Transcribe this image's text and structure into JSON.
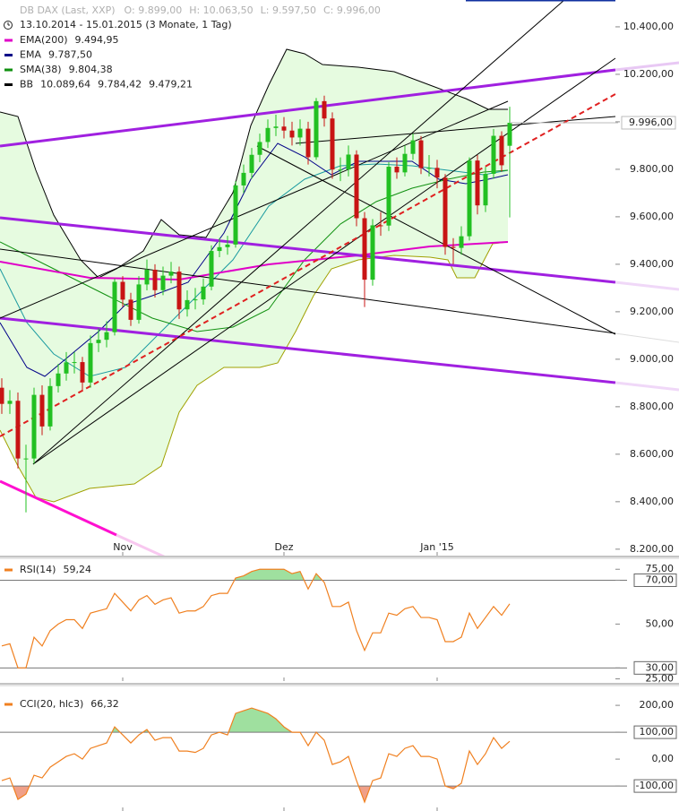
{
  "chart_data": [
    {
      "type": "candlestick",
      "title": "DB DAX (Last, XXP)",
      "ohlc_readout": [
        "O: 9.899,00",
        "H: 10.063,50",
        "L: 9.597,50",
        "C: 9.996,00"
      ],
      "subtitle": "13.10.2014 - 15.01.2015 (3 Monate, 1 Tag)",
      "legend": [
        {
          "name": "EMA(200)",
          "color": "#e000c8",
          "readings": [
            {
              "text": "9.494,95",
              "color": "#e000c8"
            }
          ]
        },
        {
          "name": "EMA",
          "color": "#000088",
          "readings": [
            {
              "text": "9.787,50",
              "color": "#000088"
            }
          ]
        },
        {
          "name": "SMA(38)",
          "color": "#109010",
          "readings": [
            {
              "text": "9.804,38",
              "color": "#109010"
            }
          ]
        },
        {
          "name": "BB",
          "color": "#000000",
          "readings": [
            {
              "text": "10.089,64",
              "color": "#000000"
            },
            {
              "text": "9.784,42",
              "color": "#1a9aa0"
            },
            {
              "text": "9.479,21",
              "color": "#a0a000"
            }
          ]
        }
      ],
      "up_color": "#22c022",
      "down_color": "#c81414",
      "open": [
        8880,
        8812,
        8825,
        8582,
        8582,
        8850,
        8717,
        8887,
        8940,
        8987,
        8988,
        8902,
        9068,
        9082,
        9114,
        9326,
        9251,
        9166,
        9315,
        9377,
        9291,
        9352,
        9369,
        9210,
        9249,
        9252,
        9306,
        9456,
        9472,
        9483,
        9732,
        9785,
        9861,
        9915,
        9974,
        9980,
        9963,
        9934,
        9971,
        9851,
        10087,
        10014,
        9799,
        9799,
        9862,
        9594,
        9335,
        9564,
        9563,
        9811,
        9787,
        9865,
        9922,
        9805,
        9806,
        9765,
        9473,
        9469,
        9518,
        9837,
        9648,
        9781,
        9941,
        9899
      ],
      "high": [
        8920,
        8870,
        8860,
        8640,
        8880,
        8890,
        8920,
        8980,
        9030,
        9030,
        9010,
        9100,
        9130,
        9160,
        9340,
        9350,
        9280,
        9350,
        9420,
        9400,
        9390,
        9410,
        9390,
        9290,
        9300,
        9340,
        9480,
        9510,
        9520,
        9750,
        9820,
        9890,
        9950,
        10010,
        10030,
        10020,
        10000,
        10010,
        10000,
        10100,
        10110,
        10040,
        9850,
        9900,
        9880,
        9620,
        9590,
        9620,
        9830,
        9850,
        9900,
        9950,
        9940,
        9860,
        9840,
        9780,
        9510,
        9560,
        9850,
        9860,
        9810,
        9970,
        9960,
        10063.5
      ],
      "low": [
        8770,
        8770,
        8540,
        8355,
        8560,
        8680,
        8700,
        8860,
        8910,
        8940,
        8870,
        8880,
        9030,
        9050,
        9100,
        9220,
        9140,
        9150,
        9290,
        9260,
        9270,
        9320,
        9170,
        9180,
        9210,
        9230,
        9290,
        9430,
        9440,
        9470,
        9700,
        9760,
        9830,
        9890,
        9940,
        9930,
        9900,
        9900,
        9820,
        9840,
        9980,
        9760,
        9750,
        9770,
        9560,
        9220,
        9310,
        9520,
        9540,
        9760,
        9770,
        9840,
        9780,
        9770,
        9720,
        9440,
        9400,
        9440,
        9500,
        9610,
        9620,
        9760,
        9790,
        9597.5
      ],
      "close": [
        8812,
        8825,
        8582,
        8582,
        8850,
        8717,
        8887,
        8940,
        8987,
        8988,
        8902,
        9068,
        9082,
        9114,
        9326,
        9251,
        9166,
        9315,
        9377,
        9291,
        9352,
        9369,
        9210,
        9249,
        9252,
        9306,
        9456,
        9472,
        9483,
        9732,
        9785,
        9861,
        9915,
        9974,
        9980,
        9963,
        9934,
        9971,
        9851,
        10087,
        10014,
        9799,
        9799,
        9862,
        9594,
        9335,
        9564,
        9563,
        9811,
        9787,
        9865,
        9922,
        9805,
        9806,
        9765,
        9473,
        9469,
        9518,
        9837,
        9648,
        9781,
        9941,
        9817,
        9996
      ],
      "last_price": {
        "value": 9996,
        "label": "9.996,00"
      },
      "ylim": [
        8173,
        10513
      ],
      "yticks": [
        {
          "value": 10400,
          "label": "10.400,00"
        },
        {
          "value": 10200,
          "label": "10.200,00"
        },
        {
          "value": 10000,
          "label": "10.000,00"
        },
        {
          "value": 9800,
          "label": "9.800,00"
        },
        {
          "value": 9600,
          "label": "9.600,00"
        },
        {
          "value": 9400,
          "label": "9.400,00"
        },
        {
          "value": 9200,
          "label": "9.200,00"
        },
        {
          "value": 9000,
          "label": "9.000,00"
        },
        {
          "value": 8800,
          "label": "8.800,00"
        },
        {
          "value": 8600,
          "label": "8.600,00"
        },
        {
          "value": 8400,
          "label": "8.400,00"
        },
        {
          "value": 8200,
          "label": "8.200,00"
        }
      ],
      "xticks": [
        {
          "value": 15,
          "label": "Nov"
        },
        {
          "value": 35,
          "label": "Dez"
        },
        {
          "value": 54,
          "label": "Jan '15"
        }
      ]
    },
    {
      "type": "line",
      "name": "RSI(14)",
      "reading": "59,24",
      "color": "#f08020",
      "values": [
        40,
        41,
        30,
        30,
        44,
        40,
        47,
        50,
        52,
        52,
        48,
        55,
        56,
        57,
        64,
        60,
        56,
        61,
        63,
        59,
        61,
        62,
        55,
        56,
        56,
        58,
        63,
        64,
        64,
        71,
        72,
        74,
        75,
        75,
        75,
        75,
        73,
        74,
        66,
        73,
        69,
        58,
        58,
        60,
        47,
        38,
        46,
        46,
        55,
        54,
        57,
        58,
        53,
        53,
        52,
        42,
        42,
        44,
        55,
        48,
        53,
        58,
        54,
        59.24
      ],
      "ylim": [
        24,
        80
      ],
      "yticks": [
        {
          "value": 75,
          "label": "75,00"
        },
        {
          "value": 70,
          "label": "70,00"
        },
        {
          "value": 50,
          "label": "50,00"
        },
        {
          "value": 30,
          "label": "30,00"
        },
        {
          "value": 25,
          "label": "25,00"
        }
      ],
      "levels": [
        {
          "value": 70,
          "fill": "#9fe09f"
        },
        {
          "value": 30,
          "fill": "#f0a088"
        }
      ]
    },
    {
      "type": "line",
      "name": "CCI(20, hlc3)",
      "reading": "66,32",
      "color": "#f08020",
      "values": [
        -80,
        -70,
        -150,
        -130,
        -60,
        -70,
        -30,
        -10,
        10,
        20,
        0,
        40,
        50,
        60,
        120,
        90,
        60,
        90,
        110,
        70,
        80,
        80,
        30,
        30,
        25,
        40,
        90,
        100,
        90,
        170,
        180,
        190,
        180,
        170,
        150,
        120,
        100,
        100,
        50,
        100,
        70,
        -20,
        -10,
        10,
        -80,
        -160,
        -80,
        -70,
        20,
        10,
        40,
        50,
        10,
        10,
        0,
        -100,
        -110,
        -90,
        30,
        -20,
        20,
        80,
        40,
        66.32
      ],
      "ylim": [
        -193,
        247
      ],
      "yticks": [
        {
          "value": 200,
          "label": "200,00"
        },
        {
          "value": 100,
          "label": "100,00"
        },
        {
          "value": 0,
          "label": "0,00"
        },
        {
          "value": -100,
          "label": "-100,00"
        }
      ],
      "levels": [
        {
          "value": 100,
          "fill": "#9fe09f"
        },
        {
          "value": -100,
          "fill": "#f0a088"
        }
      ]
    }
  ]
}
